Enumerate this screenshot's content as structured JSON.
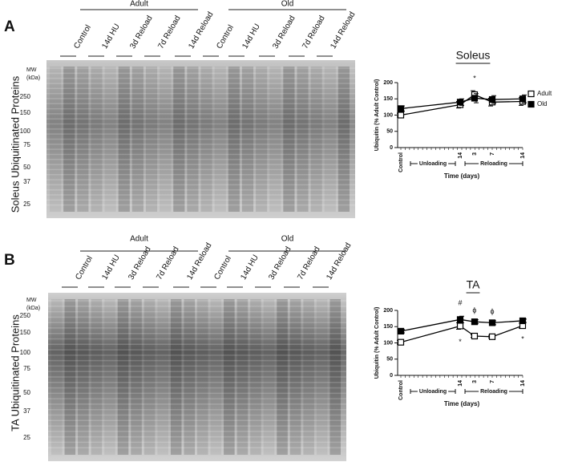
{
  "chart_data": [
    {
      "type": "line",
      "title": "Soleus",
      "y_label": "Ubiquitin (% Adult Control)",
      "x_label": "Time (days)",
      "categories": [
        "Control",
        "14",
        "3",
        "7",
        "14"
      ],
      "ylim": [
        0,
        200
      ],
      "yticks": [
        0,
        50,
        100,
        150,
        200
      ],
      "legend": "upper right",
      "annotations": [
        "Unloading",
        "Reloading",
        "*"
      ],
      "series": [
        {
          "name": "Adult",
          "color": "#000000",
          "marker": "open",
          "values": [
            100,
            132,
            163,
            140,
            142
          ],
          "errors": [
            6,
            10,
            12,
            12,
            12
          ]
        },
        {
          "name": "Old",
          "color": "#000000",
          "marker": "filled",
          "values": [
            120,
            140,
            152,
            148,
            150
          ],
          "errors": [
            8,
            10,
            14,
            12,
            12
          ]
        }
      ]
    },
    {
      "type": "line",
      "title": "TA",
      "y_label": "Ubiquitin (% Adult Control)",
      "x_label": "Time (days)",
      "categories": [
        "Control",
        "14",
        "3",
        "7",
        "14"
      ],
      "ylim": [
        0,
        200
      ],
      "yticks": [
        0,
        50,
        100,
        150,
        200
      ],
      "legend": "none",
      "annotations": [
        "Unloading",
        "Reloading",
        "#",
        "*",
        "ϕ",
        "ϕ",
        "*"
      ],
      "series": [
        {
          "name": "Adult",
          "color": "#000000",
          "marker": "open",
          "values": [
            102,
            152,
            121,
            119,
            153
          ],
          "errors": [
            6,
            10,
            4,
            4,
            8
          ]
        },
        {
          "name": "Old",
          "color": "#000000",
          "marker": "filled",
          "values": [
            136,
            172,
            165,
            162,
            168
          ],
          "errors": [
            5,
            10,
            6,
            6,
            5
          ]
        }
      ]
    }
  ],
  "panels": [
    {
      "label": "A",
      "groups": [
        "Adult",
        "Old"
      ],
      "lanes": [
        "Control",
        "14d HU",
        "3d Reload",
        "7d Reload",
        "14d Reload",
        "Control",
        "14d HU",
        "3d Reload",
        "7d Reload",
        "14d Reload"
      ],
      "mw_header": [
        "MW",
        "(kDa)"
      ],
      "mw": [
        250,
        150,
        100,
        75,
        50,
        37,
        25
      ],
      "y_label": "Soleus Ubiquitinated Proteins"
    },
    {
      "label": "B",
      "groups": [
        "Adult",
        "Old"
      ],
      "lanes": [
        "Control",
        "14d HU",
        "3d Reload",
        "7d Reload",
        "14d Reload",
        "Control",
        "14d HU",
        "3d Reload",
        "7d Reload",
        "14d Reload"
      ],
      "mw_header": [
        "MW",
        "(kDa)"
      ],
      "mw": [
        250,
        150,
        100,
        75,
        50,
        37,
        25
      ],
      "y_label": "TA Ubiquitinated Proteins"
    }
  ]
}
